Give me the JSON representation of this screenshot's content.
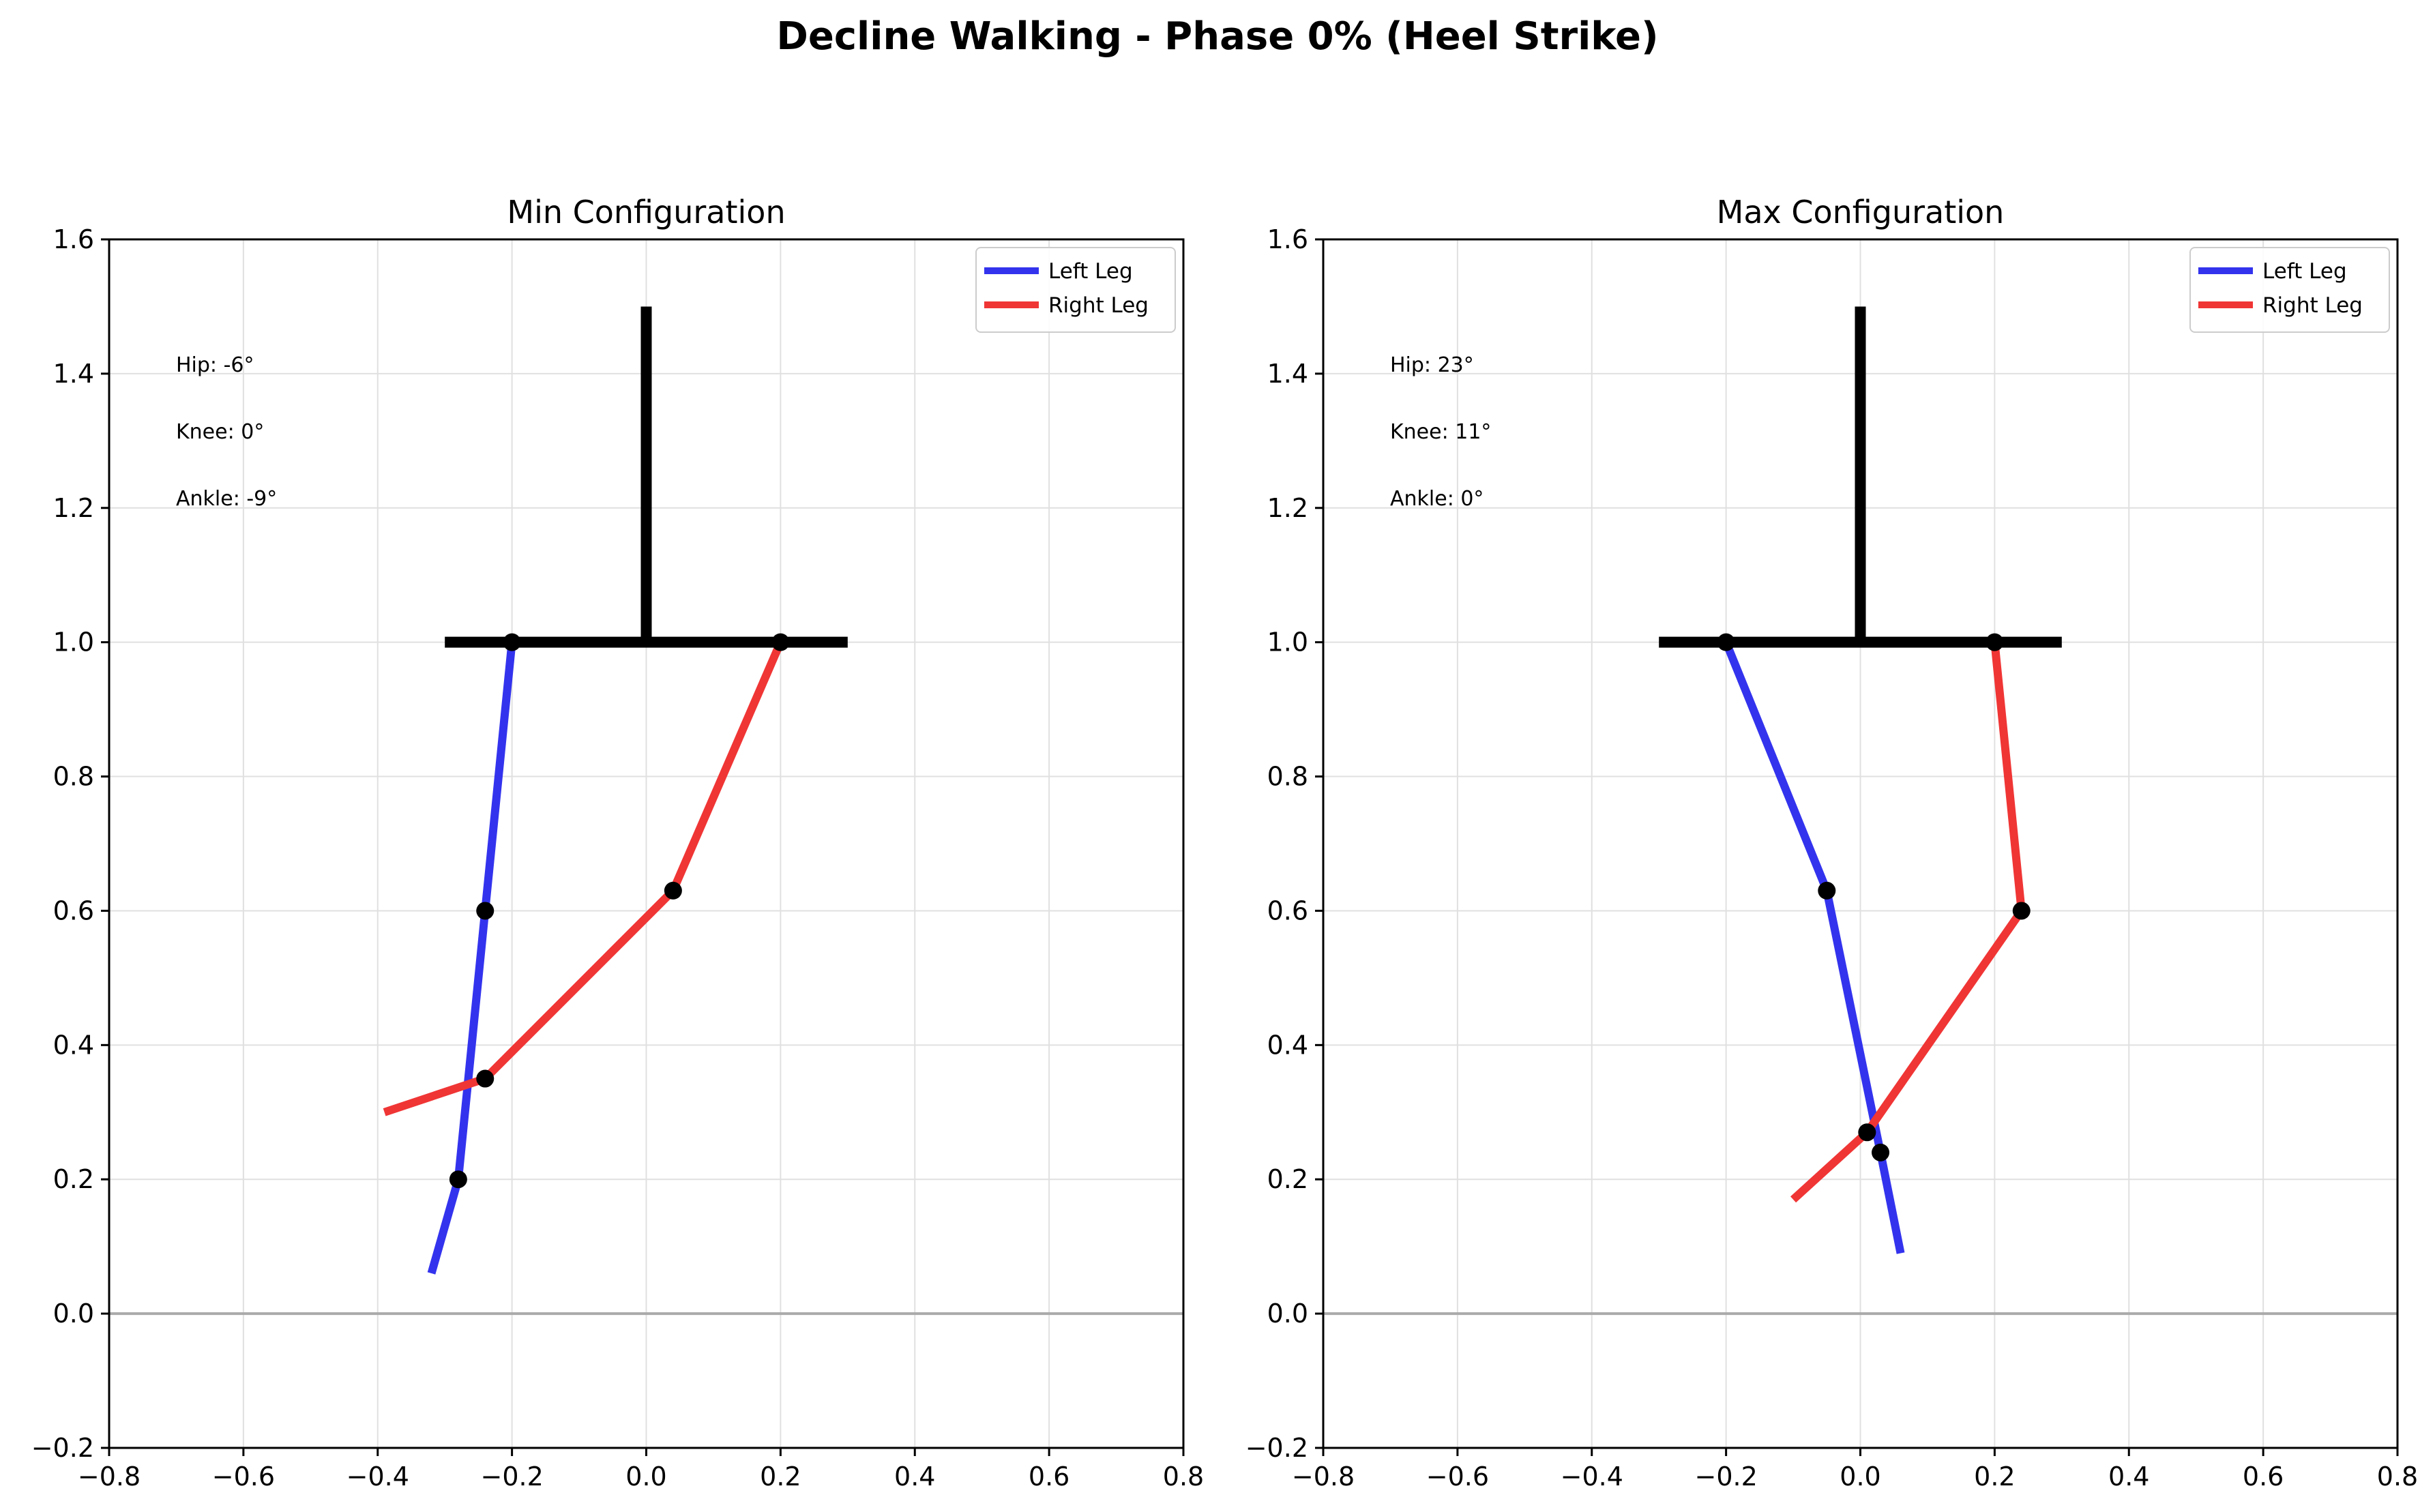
{
  "title": "Decline Walking - Phase 0% (Heel Strike)",
  "colors": {
    "left_leg": "#3333ee",
    "right_leg": "#f03535",
    "body": "#000000",
    "ground": "#aaaaaa",
    "grid": "#e0e0e0"
  },
  "chart_data": [
    {
      "type": "line",
      "title": "Min Configuration",
      "xlim": [
        -0.8,
        0.8
      ],
      "ylim": [
        -0.2,
        1.6
      ],
      "xticks": [
        "−0.8",
        "−0.6",
        "−0.4",
        "−0.2",
        "0.0",
        "0.2",
        "0.4",
        "0.6",
        "0.8"
      ],
      "yticks": [
        "−0.2",
        "0.0",
        "0.2",
        "0.4",
        "0.6",
        "0.8",
        "1.0",
        "1.2",
        "1.4",
        "1.6"
      ],
      "grid": true,
      "legend_position": "top-right",
      "ground_y": 0.0,
      "trunk": [
        [
          0.0,
          1.0
        ],
        [
          0.0,
          1.5
        ]
      ],
      "pelvis": [
        [
          -0.3,
          1.0
        ],
        [
          0.3,
          1.0
        ]
      ],
      "annotations": [
        "Hip: -6°",
        "Knee: 0°",
        "Ankle: -9°"
      ],
      "series": [
        {
          "name": "Left Leg",
          "points": [
            [
              -0.2,
              1.0
            ],
            [
              -0.24,
              0.6
            ],
            [
              -0.28,
              0.2
            ],
            [
              -0.32,
              0.06
            ]
          ],
          "joints": [
            [
              -0.2,
              1.0
            ],
            [
              -0.24,
              0.6
            ],
            [
              -0.28,
              0.2
            ]
          ]
        },
        {
          "name": "Right Leg",
          "points": [
            [
              0.2,
              1.0
            ],
            [
              0.04,
              0.63
            ],
            [
              -0.24,
              0.35
            ],
            [
              -0.39,
              0.3
            ]
          ],
          "joints": [
            [
              0.2,
              1.0
            ],
            [
              0.04,
              0.63
            ],
            [
              -0.24,
              0.35
            ]
          ]
        }
      ]
    },
    {
      "type": "line",
      "title": "Max Configuration",
      "xlim": [
        -0.8,
        0.8
      ],
      "ylim": [
        -0.2,
        1.6
      ],
      "xticks": [
        "−0.8",
        "−0.6",
        "−0.4",
        "−0.2",
        "0.0",
        "0.2",
        "0.4",
        "0.6",
        "0.8"
      ],
      "yticks": [
        "−0.2",
        "0.0",
        "0.2",
        "0.4",
        "0.6",
        "0.8",
        "1.0",
        "1.2",
        "1.4",
        "1.6"
      ],
      "grid": true,
      "legend_position": "top-right",
      "ground_y": 0.0,
      "trunk": [
        [
          0.0,
          1.0
        ],
        [
          0.0,
          1.5
        ]
      ],
      "pelvis": [
        [
          -0.3,
          1.0
        ],
        [
          0.3,
          1.0
        ]
      ],
      "annotations": [
        "Hip: 23°",
        "Knee: 11°",
        "Ankle: 0°"
      ],
      "series": [
        {
          "name": "Left Leg",
          "points": [
            [
              -0.2,
              1.0
            ],
            [
              -0.05,
              0.63
            ],
            [
              0.03,
              0.24
            ],
            [
              0.06,
              0.09
            ]
          ],
          "joints": [
            [
              -0.2,
              1.0
            ],
            [
              -0.05,
              0.63
            ],
            [
              0.03,
              0.24
            ]
          ]
        },
        {
          "name": "Right Leg",
          "points": [
            [
              0.2,
              1.0
            ],
            [
              0.24,
              0.6
            ],
            [
              0.01,
              0.27
            ],
            [
              -0.1,
              0.17
            ]
          ],
          "joints": [
            [
              0.2,
              1.0
            ],
            [
              0.24,
              0.6
            ],
            [
              0.01,
              0.27
            ]
          ]
        }
      ]
    }
  ]
}
